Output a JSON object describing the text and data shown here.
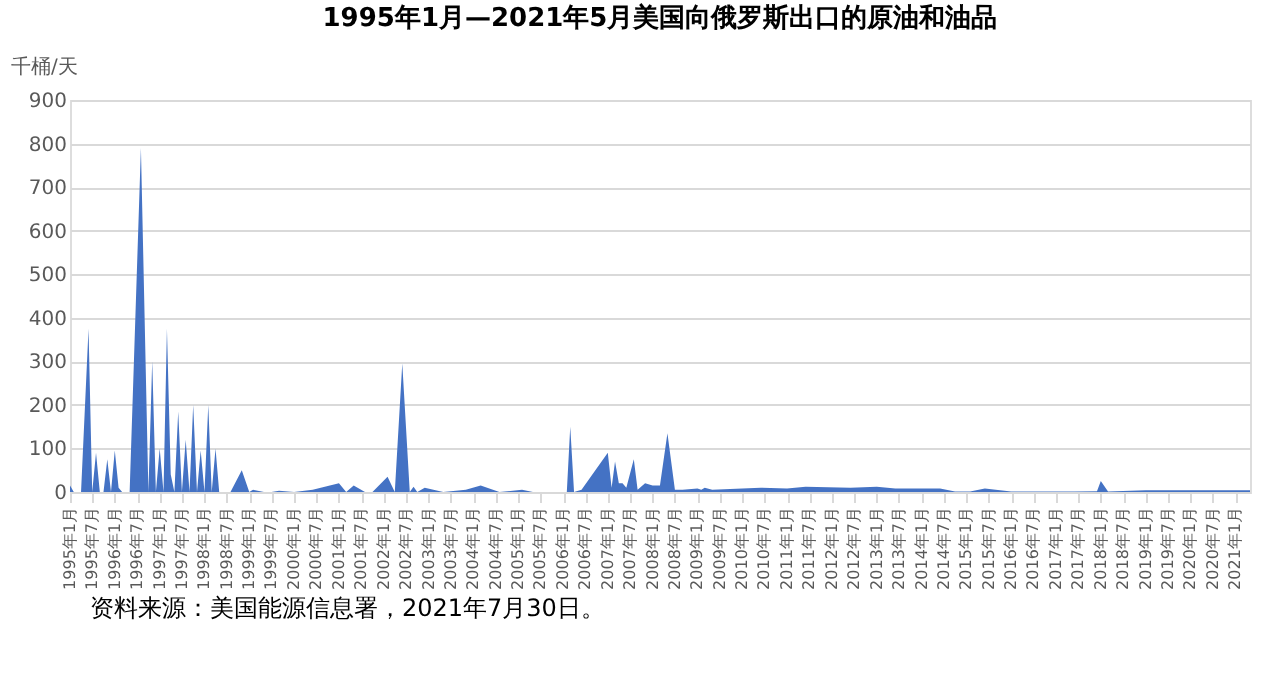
{
  "chart_data": {
    "type": "area",
    "title": "1995年1月—2021年5月美国向俄罗斯出口的原油和油品",
    "ylabel": "千桶/天",
    "annotations": [
      "资料来源：美国能源信息署，2021年7月30日。"
    ],
    "x": [
      "1995-01",
      "1995-02",
      "1995-04",
      "1995-06",
      "1995-07",
      "1995-08",
      "1995-09",
      "1995-10",
      "1995-11",
      "1995-12",
      "1996-01",
      "1996-02",
      "1996-03",
      "1996-05",
      "1996-08",
      "1996-10",
      "1996-11",
      "1996-12",
      "1997-01",
      "1997-02",
      "1997-03",
      "1997-04",
      "1997-05",
      "1997-06",
      "1997-07",
      "1997-08",
      "1997-09",
      "1997-10",
      "1997-11",
      "1997-12",
      "1998-01",
      "1998-02",
      "1998-03",
      "1998-04",
      "1998-05",
      "1998-06",
      "1998-07",
      "1998-08",
      "1998-11",
      "1999-01",
      "1999-02",
      "1999-05",
      "1999-07",
      "1999-09",
      "2000-01",
      "2000-06",
      "2001-01",
      "2001-03",
      "2001-05",
      "2001-08",
      "2001-10",
      "2002-02",
      "2002-04",
      "2002-06",
      "2002-08",
      "2002-09",
      "2002-10",
      "2002-12",
      "2003-05",
      "2003-11",
      "2004-03",
      "2004-08",
      "2005-02",
      "2005-05",
      "2006-02",
      "2006-03",
      "2006-04",
      "2006-06",
      "2007-01",
      "2007-02",
      "2007-03",
      "2007-04",
      "2007-05",
      "2007-06",
      "2007-08",
      "2007-09",
      "2007-11",
      "2008-01",
      "2008-03",
      "2008-05",
      "2008-07",
      "2008-09",
      "2009-01",
      "2009-02",
      "2009-03",
      "2009-05",
      "2010-01",
      "2010-06",
      "2011-01",
      "2011-06",
      "2012-06",
      "2013-01",
      "2013-06",
      "2014-06",
      "2014-10",
      "2015-02",
      "2015-06",
      "2016-01",
      "2017-06",
      "2017-12",
      "2018-01",
      "2018-03",
      "2019-01",
      "2020-09",
      "2021-05"
    ],
    "values": [
      15,
      0,
      0,
      375,
      0,
      90,
      0,
      0,
      75,
      0,
      95,
      10,
      0,
      0,
      790,
      0,
      300,
      0,
      100,
      0,
      375,
      40,
      0,
      185,
      0,
      120,
      0,
      200,
      0,
      95,
      0,
      200,
      0,
      100,
      0,
      0,
      0,
      0,
      50,
      0,
      5,
      0,
      0,
      3,
      0,
      5,
      20,
      0,
      15,
      0,
      0,
      35,
      0,
      295,
      0,
      12,
      0,
      10,
      0,
      5,
      15,
      0,
      5,
      0,
      0,
      150,
      0,
      5,
      90,
      10,
      70,
      20,
      20,
      10,
      75,
      5,
      20,
      15,
      15,
      135,
      5,
      5,
      8,
      5,
      10,
      5,
      8,
      10,
      8,
      12,
      10,
      12,
      8,
      8,
      1,
      1,
      8,
      1,
      1,
      2,
      25,
      1,
      4,
      4,
      4
    ],
    "color": "#4472c4",
    "ylim": [
      0,
      900
    ],
    "yticks": [
      0,
      100,
      200,
      300,
      400,
      500,
      600,
      700,
      800,
      900
    ],
    "grid": "y",
    "xlim": [
      "1995-01",
      "2021-05"
    ],
    "xticks": [
      {
        "value": "1995-01",
        "label": "1995年1月"
      },
      {
        "value": "1995-07",
        "label": "1995年7月"
      },
      {
        "value": "1996-01",
        "label": "1996年1月"
      },
      {
        "value": "1996-07",
        "label": "1996年7月"
      },
      {
        "value": "1997-01",
        "label": "1997年1月"
      },
      {
        "value": "1997-07",
        "label": "1997年7月"
      },
      {
        "value": "1998-01",
        "label": "1998年1月"
      },
      {
        "value": "1998-07",
        "label": "1998年7月"
      },
      {
        "value": "1999-01",
        "label": "1999年1月"
      },
      {
        "value": "1999-07",
        "label": "1999年7月"
      },
      {
        "value": "2000-01",
        "label": "2000年1月"
      },
      {
        "value": "2000-07",
        "label": "2000年7月"
      },
      {
        "value": "2001-01",
        "label": "2001年1月"
      },
      {
        "value": "2001-07",
        "label": "2001年7月"
      },
      {
        "value": "2002-01",
        "label": "2002年1月"
      },
      {
        "value": "2002-07",
        "label": "2002年7月"
      },
      {
        "value": "2003-01",
        "label": "2003年1月"
      },
      {
        "value": "2003-07",
        "label": "2003年7月"
      },
      {
        "value": "2004-01",
        "label": "2004年1月"
      },
      {
        "value": "2004-07",
        "label": "2004年7月"
      },
      {
        "value": "2005-01",
        "label": "2005年1月"
      },
      {
        "value": "2005-07",
        "label": "2005年7月"
      },
      {
        "value": "2006-01",
        "label": "2006年1月"
      },
      {
        "value": "2006-07",
        "label": "2006年7月"
      },
      {
        "value": "2007-01",
        "label": "2007年1月"
      },
      {
        "value": "2007-07",
        "label": "2007年7月"
      },
      {
        "value": "2008-01",
        "label": "2008年1月"
      },
      {
        "value": "2008-07",
        "label": "2008年7月"
      },
      {
        "value": "2009-01",
        "label": "2009年1月"
      },
      {
        "value": "2009-07",
        "label": "2009年7月"
      },
      {
        "value": "2010-01",
        "label": "2010年1月"
      },
      {
        "value": "2010-07",
        "label": "2010年7月"
      },
      {
        "value": "2011-01",
        "label": "2011年1月"
      },
      {
        "value": "2011-07",
        "label": "2011年7月"
      },
      {
        "value": "2012-01",
        "label": "2012年1月"
      },
      {
        "value": "2012-07",
        "label": "2012年7月"
      },
      {
        "value": "2013-01",
        "label": "2013年1月"
      },
      {
        "value": "2013-07",
        "label": "2013年7月"
      },
      {
        "value": "2014-01",
        "label": "2014年1月"
      },
      {
        "value": "2014-07",
        "label": "2014年7月"
      },
      {
        "value": "2015-01",
        "label": "2015年1月"
      },
      {
        "value": "2015-07",
        "label": "2015年7月"
      },
      {
        "value": "2016-01",
        "label": "2016年1月"
      },
      {
        "value": "2016-07",
        "label": "2016年7月"
      },
      {
        "value": "2017-01",
        "label": "2017年1月"
      },
      {
        "value": "2017-07",
        "label": "2017年7月"
      },
      {
        "value": "2018-01",
        "label": "2018年1月"
      },
      {
        "value": "2018-07",
        "label": "2018年7月"
      },
      {
        "value": "2019-01",
        "label": "2019年1月"
      },
      {
        "value": "2019-07",
        "label": "2019年7月"
      },
      {
        "value": "2020-01",
        "label": "2020年1月"
      },
      {
        "value": "2020-07",
        "label": "2020年7月"
      },
      {
        "value": "2021-01",
        "label": "2021年1月"
      }
    ]
  }
}
